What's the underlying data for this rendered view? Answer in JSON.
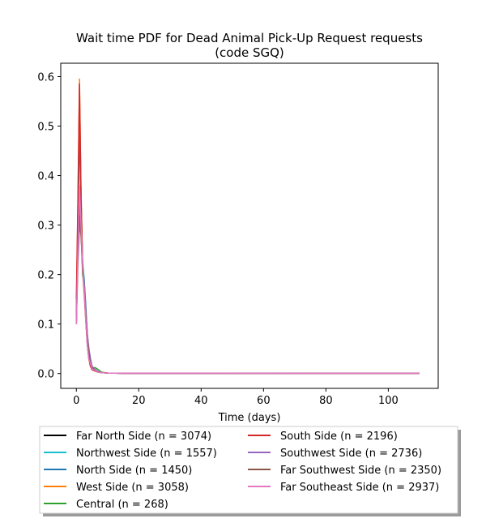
{
  "chart_data": {
    "type": "line",
    "title": "Wait time PDF for Dead Animal Pick-Up Request  requests",
    "subtitle": "(code SGQ)",
    "xlabel": "Time (days)",
    "ylabel": "",
    "xlim": [
      -5,
      116
    ],
    "ylim": [
      -0.03,
      0.627
    ],
    "xticks": [
      0,
      20,
      40,
      60,
      80,
      100
    ],
    "yticks": [
      0.0,
      0.1,
      0.2,
      0.3,
      0.4,
      0.5,
      0.6
    ],
    "xtick_labels": [
      "0",
      "20",
      "40",
      "60",
      "80",
      "100"
    ],
    "ytick_labels": [
      "0.0",
      "0.1",
      "0.2",
      "0.3",
      "0.4",
      "0.5",
      "0.6"
    ],
    "grid": false,
    "legend_position": "below",
    "x": [
      0,
      0.5,
      1,
      1.5,
      2,
      2.5,
      3,
      3.5,
      4,
      4.5,
      5,
      6,
      7,
      8,
      10,
      15,
      110
    ],
    "series": [
      {
        "name": "Far North Side (n = 3074)",
        "color": "#000000",
        "values": [
          0.12,
          0.3,
          0.55,
          0.35,
          0.22,
          0.18,
          0.12,
          0.07,
          0.04,
          0.02,
          0.01,
          0.005,
          0.003,
          0.002,
          0.001,
          0.0005,
          0.0003
        ]
      },
      {
        "name": "Northwest Side (n = 1557)",
        "color": "#17becf",
        "values": [
          0.11,
          0.28,
          0.52,
          0.36,
          0.23,
          0.19,
          0.13,
          0.07,
          0.04,
          0.02,
          0.01,
          0.006,
          0.003,
          0.002,
          0.001,
          0.0005,
          0.0003
        ]
      },
      {
        "name": "North Side (n = 1450)",
        "color": "#1f77b4",
        "values": [
          0.1,
          0.27,
          0.5,
          0.34,
          0.22,
          0.19,
          0.14,
          0.08,
          0.05,
          0.03,
          0.015,
          0.008,
          0.004,
          0.002,
          0.001,
          0.0005,
          0.0003
        ]
      },
      {
        "name": "West Side (n = 3058)",
        "color": "#ff7f0e",
        "values": [
          0.13,
          0.33,
          0.595,
          0.37,
          0.21,
          0.16,
          0.11,
          0.06,
          0.03,
          0.015,
          0.008,
          0.005,
          0.003,
          0.002,
          0.001,
          0.0005,
          0.0003
        ]
      },
      {
        "name": "Central (n = 268)",
        "color": "#2ca02c",
        "values": [
          0.12,
          0.25,
          0.35,
          0.3,
          0.2,
          0.18,
          0.12,
          0.06,
          0.03,
          0.02,
          0.01,
          0.012,
          0.008,
          0.003,
          0.001,
          0.0005,
          0.0003
        ]
      },
      {
        "name": "South Side (n = 2196)",
        "color": "#d62728",
        "values": [
          0.15,
          0.35,
          0.585,
          0.36,
          0.22,
          0.17,
          0.11,
          0.06,
          0.03,
          0.015,
          0.008,
          0.005,
          0.003,
          0.002,
          0.001,
          0.0005,
          0.0003
        ]
      },
      {
        "name": "Southwest Side (n = 2736)",
        "color": "#9467bd",
        "values": [
          0.1,
          0.22,
          0.3,
          0.28,
          0.22,
          0.18,
          0.13,
          0.08,
          0.05,
          0.03,
          0.015,
          0.008,
          0.004,
          0.002,
          0.001,
          0.0005,
          0.0003
        ]
      },
      {
        "name": "Far Southwest Side (n = 2350)",
        "color": "#8c564b",
        "values": [
          0.1,
          0.24,
          0.32,
          0.28,
          0.21,
          0.17,
          0.12,
          0.07,
          0.04,
          0.02,
          0.012,
          0.006,
          0.003,
          0.002,
          0.001,
          0.0005,
          0.0003
        ]
      },
      {
        "name": "Far Southeast Side (n = 2937)",
        "color": "#e377c2",
        "values": [
          0.1,
          0.25,
          0.38,
          0.3,
          0.22,
          0.17,
          0.11,
          0.06,
          0.03,
          0.02,
          0.01,
          0.006,
          0.003,
          0.002,
          0.001,
          0.0005,
          0.0003
        ]
      }
    ]
  }
}
